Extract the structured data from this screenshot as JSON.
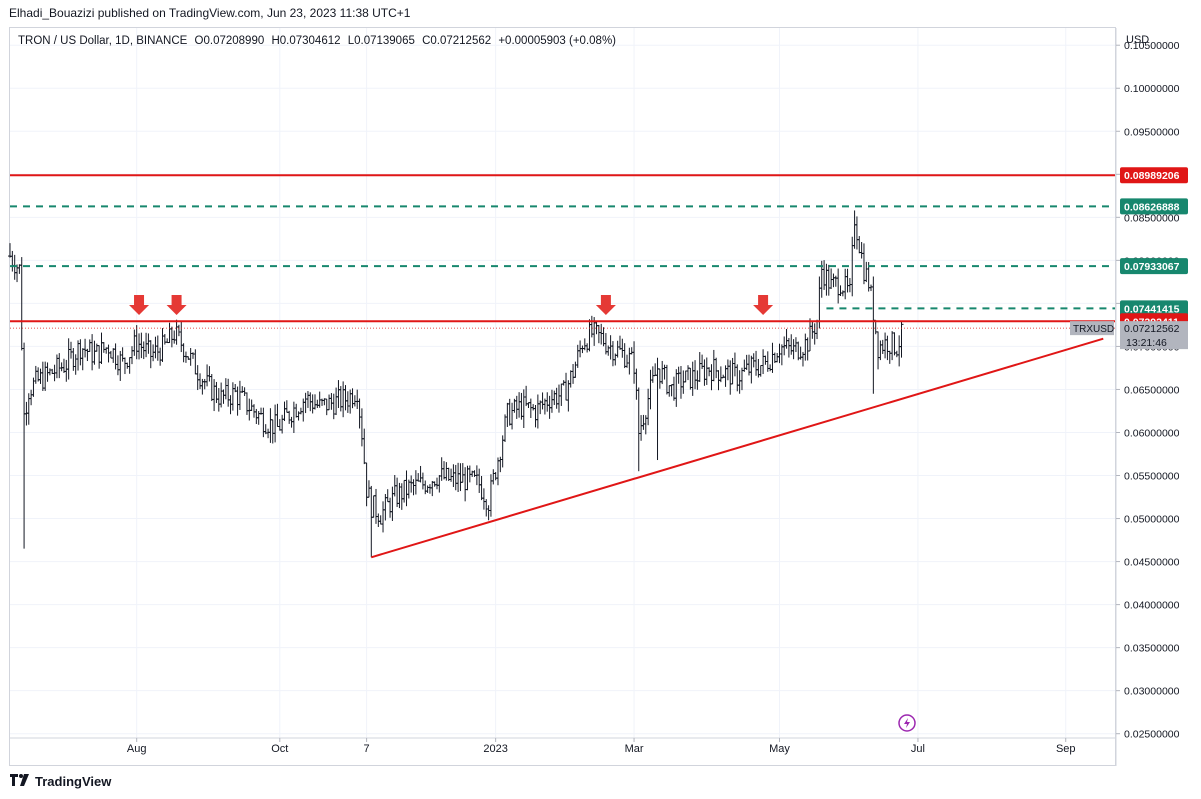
{
  "header": {
    "published_line": "Elhadi_Bouazizi published on TradingView.com, Jun 23, 2023 11:38 UTC+1"
  },
  "legend": {
    "symbol": "TRON / US Dollar, 1D, BINANCE",
    "open": "O0.07208990",
    "high": "H0.07304612",
    "low": "L0.07139065",
    "close": "C0.07212562",
    "change": "+0.00005903 (+0.08%)"
  },
  "footer": {
    "brand": "TradingView",
    "logo_icon": "tradingview-logo-icon"
  },
  "chart_data": {
    "type": "candlestick",
    "price_axis_label": "USD",
    "y_ticks": [
      "0.02500000",
      "0.03000000",
      "0.03500000",
      "0.04000000",
      "0.04500000",
      "0.05000000",
      "0.05500000",
      "0.06000000",
      "0.06500000",
      "0.07000000",
      "0.07500000",
      "0.08000000",
      "0.08500000",
      "0.09000000",
      "0.09500000",
      "0.10000000",
      "0.10500000"
    ],
    "ylim": [
      0.0245,
      0.107
    ],
    "x_ticks": [
      "Aug",
      "Oct",
      "7",
      "2023",
      "Mar",
      "May",
      "Jul",
      "Sep"
    ],
    "x_tick_days": [
      24,
      85,
      122,
      177,
      236,
      298,
      357,
      420
    ],
    "xlim": [
      -30,
      441
    ],
    "close_path": [
      [
        -30,
        0.0805
      ],
      [
        -26,
        0.079
      ],
      [
        -24,
        0.062
      ],
      [
        -22,
        0.065
      ],
      [
        -18,
        0.066
      ],
      [
        -12,
        0.067
      ],
      [
        -6,
        0.068
      ],
      [
        0,
        0.07
      ],
      [
        6,
        0.069
      ],
      [
        12,
        0.07
      ],
      [
        18,
        0.068
      ],
      [
        24,
        0.0705
      ],
      [
        30,
        0.069
      ],
      [
        36,
        0.07
      ],
      [
        40,
        0.0715
      ],
      [
        44,
        0.07
      ],
      [
        48,
        0.068
      ],
      [
        54,
        0.0655
      ],
      [
        60,
        0.064
      ],
      [
        66,
        0.0645
      ],
      [
        72,
        0.063
      ],
      [
        78,
        0.0615
      ],
      [
        84,
        0.0605
      ],
      [
        90,
        0.0625
      ],
      [
        96,
        0.064
      ],
      [
        102,
        0.063
      ],
      [
        108,
        0.0635
      ],
      [
        114,
        0.064
      ],
      [
        118,
        0.065
      ],
      [
        120,
        0.06
      ],
      [
        122,
        0.0535
      ],
      [
        124,
        0.0515
      ],
      [
        128,
        0.0505
      ],
      [
        134,
        0.0525
      ],
      [
        140,
        0.0535
      ],
      [
        146,
        0.054
      ],
      [
        152,
        0.055
      ],
      [
        158,
        0.0545
      ],
      [
        164,
        0.0545
      ],
      [
        170,
        0.054
      ],
      [
        174,
        0.052
      ],
      [
        178,
        0.057
      ],
      [
        182,
        0.062
      ],
      [
        188,
        0.063
      ],
      [
        194,
        0.0625
      ],
      [
        200,
        0.064
      ],
      [
        206,
        0.0645
      ],
      [
        210,
        0.067
      ],
      [
        214,
        0.0705
      ],
      [
        218,
        0.0715
      ],
      [
        222,
        0.071
      ],
      [
        226,
        0.07
      ],
      [
        232,
        0.069
      ],
      [
        236,
        0.068
      ],
      [
        238,
        0.06
      ],
      [
        242,
        0.064
      ],
      [
        246,
        0.0675
      ],
      [
        252,
        0.065
      ],
      [
        256,
        0.066
      ],
      [
        262,
        0.0665
      ],
      [
        268,
        0.0675
      ],
      [
        274,
        0.067
      ],
      [
        280,
        0.0665
      ],
      [
        286,
        0.0675
      ],
      [
        292,
        0.068
      ],
      [
        298,
        0.07
      ],
      [
        304,
        0.0695
      ],
      [
        310,
        0.0705
      ],
      [
        314,
        0.073
      ],
      [
        316,
        0.079
      ],
      [
        320,
        0.077
      ],
      [
        324,
        0.0775
      ],
      [
        328,
        0.076
      ],
      [
        330,
        0.085
      ],
      [
        332,
        0.082
      ],
      [
        334,
        0.079
      ],
      [
        336,
        0.0775
      ],
      [
        338,
        0.074
      ],
      [
        340,
        0.07
      ],
      [
        344,
        0.0705
      ],
      [
        348,
        0.07
      ],
      [
        350,
        0.0712
      ]
    ],
    "extra_extremes": [
      [
        -24,
        0.0465
      ],
      [
        -30,
        0.082
      ],
      [
        124,
        0.0455
      ],
      [
        174,
        0.0498
      ],
      [
        238,
        0.0555
      ],
      [
        246,
        0.0568
      ],
      [
        330,
        0.0858
      ],
      [
        338,
        0.0645
      ],
      [
        350,
        0.073
      ]
    ],
    "horizontal_levels": [
      {
        "value": 0.08989206,
        "label": "0.08989206",
        "color": "#e01616",
        "style": "solid"
      },
      {
        "value": 0.08626888,
        "label": "0.08626888",
        "color": "#17876e",
        "style": "dashed"
      },
      {
        "value": 0.07933067,
        "label": "0.07933067",
        "color": "#17876e",
        "style": "dashed"
      },
      {
        "value": 0.07441415,
        "label": "0.07441415",
        "color": "#17876e",
        "style": "dashed-partial"
      },
      {
        "value": 0.07292411,
        "label": "0.07292411",
        "color": "#e01616",
        "style": "solid"
      }
    ],
    "current_price": {
      "value": 0.07212562,
      "label": "0.07212562",
      "countdown": "13:21:46",
      "ticker": "TRXUSD"
    },
    "trendline": {
      "start": [
        124,
        0.0455
      ],
      "end": [
        436,
        0.0709
      ],
      "color": "#e01616"
    },
    "arrows_days": [
      25,
      41,
      224,
      291
    ],
    "lightning_icon": "lightning-icon"
  }
}
